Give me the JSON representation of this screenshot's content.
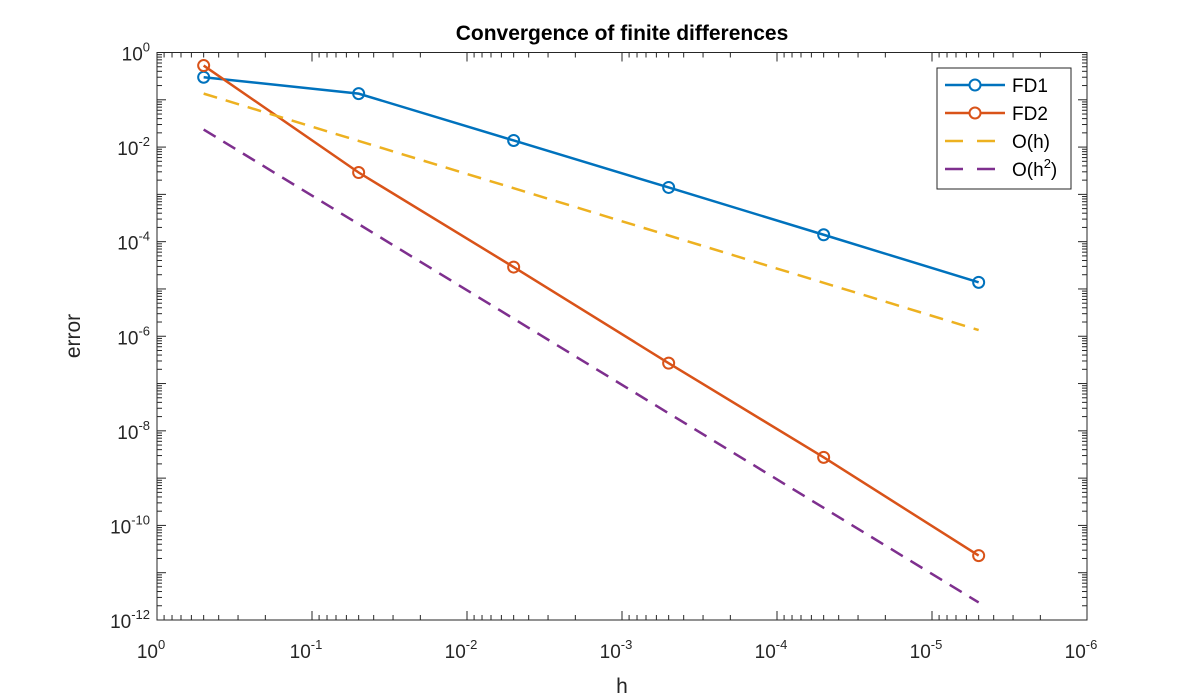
{
  "chart_data": {
    "type": "line",
    "title": "Convergence of finite differences",
    "xlabel": "h",
    "ylabel": "error",
    "xscale": "log",
    "yscale": "log",
    "x_reversed": true,
    "xlim": [
      1e-06,
      1
    ],
    "ylim": [
      1e-12,
      1
    ],
    "x_tick_exponents": [
      0,
      -1,
      -2,
      -3,
      -4,
      -5,
      -6
    ],
    "y_tick_exponents": [
      0,
      -2,
      -4,
      -6,
      -8,
      -10,
      -12
    ],
    "grid": false,
    "legend_position": "top-right",
    "x": [
      0.5,
      0.05,
      0.005,
      0.0005,
      5e-05,
      5e-06
    ],
    "series": [
      {
        "name": "FD1",
        "legend_label": "FD1",
        "style": "solid",
        "marker": "circle",
        "color": "#0072BD",
        "values": [
          0.3,
          0.135,
          0.0138,
          0.0014,
          0.00014,
          1.38e-05
        ]
      },
      {
        "name": "FD2",
        "legend_label": "FD2",
        "style": "solid",
        "marker": "circle",
        "color": "#D95319",
        "values": [
          0.53,
          0.0029,
          2.9e-05,
          2.7e-07,
          2.75e-09,
          2.3e-11
        ]
      },
      {
        "name": "O(h)",
        "legend_label": "O(h)",
        "style": "dashed",
        "marker": "none",
        "color": "#EDB120",
        "values": [
          0.135,
          0.0135,
          0.00135,
          0.000135,
          1.35e-05,
          1.35e-06
        ]
      },
      {
        "name": "O(h^2)",
        "legend_label": "O(h",
        "legend_sup": "2",
        "legend_suffix": ")",
        "style": "dashed",
        "marker": "none",
        "color": "#7E2F8E",
        "values": [
          0.0235,
          0.000235,
          2.35e-06,
          2.35e-08,
          2.35e-10,
          2.35e-12
        ]
      }
    ]
  }
}
